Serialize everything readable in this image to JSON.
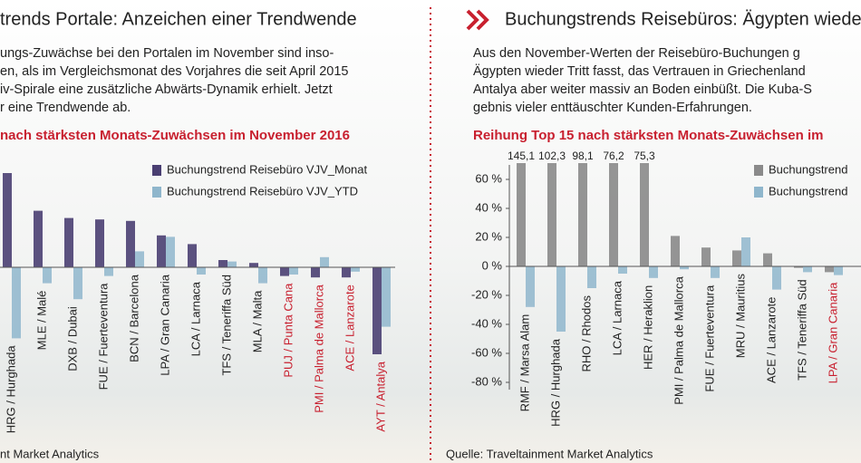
{
  "chart_data": [
    {
      "type": "bar",
      "title": "trends Portale: Anzeichen einer Trendwende",
      "text": [
        "ungs-Zuwächse bei den Portalen im November sind inso-",
        "en, als im Vergleichsmonat des Vorjahres die seit April 2015",
        "iv-Spirale eine zusätzliche Abwärts-Dynamik erhielt. Jetzt",
        "r eine Trendwende ab."
      ],
      "subtitle": "nach stärksten Monats-Zuwächsen im November 2016",
      "categories": [
        "HRG / Hurghada",
        "MLE / Malé",
        "DXB / Dubai",
        "FUE / Fuerteventura",
        "BCN / Barcelona",
        "LPA / Gran Canaria",
        "LCA / Larnaca",
        "TFS / Teneriffa Süd",
        "MLA / Malta",
        "PUJ / Punta Cana",
        "PMI / Palma de Mallorca",
        "ACE / Lanzarote",
        "AYT / Antalya"
      ],
      "category_colors": [
        "#222",
        "#222",
        "#222",
        "#222",
        "#222",
        "#222",
        "#222",
        "#222",
        "#222",
        "#c8202f",
        "#c8202f",
        "#c8202f",
        "#c8202f"
      ],
      "series": [
        {
          "name": "Buchungstrend Reisebüro VJV_Monat",
          "color": "#4a3f72",
          "values": [
            65,
            39,
            34,
            33,
            32,
            22,
            16,
            5,
            3,
            -6,
            -7,
            -7,
            -60
          ]
        },
        {
          "name": "Buchungstrend Reisebüro VJV_YTD",
          "color": "#8fb6cc",
          "values": [
            -49,
            -11,
            -22,
            -6,
            11,
            21,
            -5,
            4,
            -11,
            -5,
            7,
            -3,
            -41
          ]
        }
      ],
      "ylim": [
        -65,
        80
      ],
      "source": "nt Market Analytics"
    },
    {
      "type": "bar",
      "title": "Buchungstrends Reisebüros: Ägypten wiede",
      "text": [
        "Aus den November-Werten der Reisebüro-Buchungen g",
        "Ägypten wieder Tritt fasst, das Vertrauen in Griechenland",
        "Antalya aber weiter massiv an Boden einbüßt. Die Kuba-S",
        "gebnis vieler enttäuschter Kunden-Erfahrungen."
      ],
      "subtitle": "Reihung Top 15 nach stärksten Monats-Zuwächsen im",
      "categories": [
        "RMF / Marsa Alam",
        "HRG / Hurghada",
        "RHO / Rhodos",
        "LCA / Larnaca",
        "HER / Heraklion",
        "PMI / Palma de Mallorca",
        "FUE / Fuerteventura",
        "MRU / Mauritius",
        "ACE / Lanzarote",
        "TFS / Teneriffa Süd",
        "LPA / Gran Canaria"
      ],
      "category_colors": [
        "#222",
        "#222",
        "#222",
        "#222",
        "#222",
        "#222",
        "#222",
        "#222",
        "#222",
        "#222",
        "#c8202f"
      ],
      "series": [
        {
          "name": "Buchungstrend",
          "color": "#8a8a8a",
          "values": [
            145.1,
            102.3,
            98.1,
            76.2,
            75.3,
            21,
            13,
            11,
            9,
            -1,
            -4
          ],
          "value_labels": [
            "145,1",
            "102,3",
            "98,1",
            "76,2",
            "75,3",
            null,
            null,
            null,
            null,
            null,
            null
          ]
        },
        {
          "name": "Buchungstrend",
          "color": "#8fb6cc",
          "values": [
            -28,
            -45,
            -15,
            -5,
            -8,
            -2,
            -8,
            20,
            -16,
            -4,
            -6
          ]
        }
      ],
      "ylim": [
        -85,
        70
      ],
      "yticks": [
        {
          "value": 60,
          "label": "60 %"
        },
        {
          "value": 40,
          "label": "40 %"
        },
        {
          "value": 20,
          "label": "20 %"
        },
        {
          "value": 0,
          "label": "0 %"
        },
        {
          "value": -20,
          "label": "-20 %"
        },
        {
          "value": -40,
          "label": "-40 %"
        },
        {
          "value": -60,
          "label": "-60 %"
        },
        {
          "value": -80,
          "label": "-80 %"
        }
      ],
      "source": "Quelle: Traveltainment Market Analytics"
    }
  ]
}
